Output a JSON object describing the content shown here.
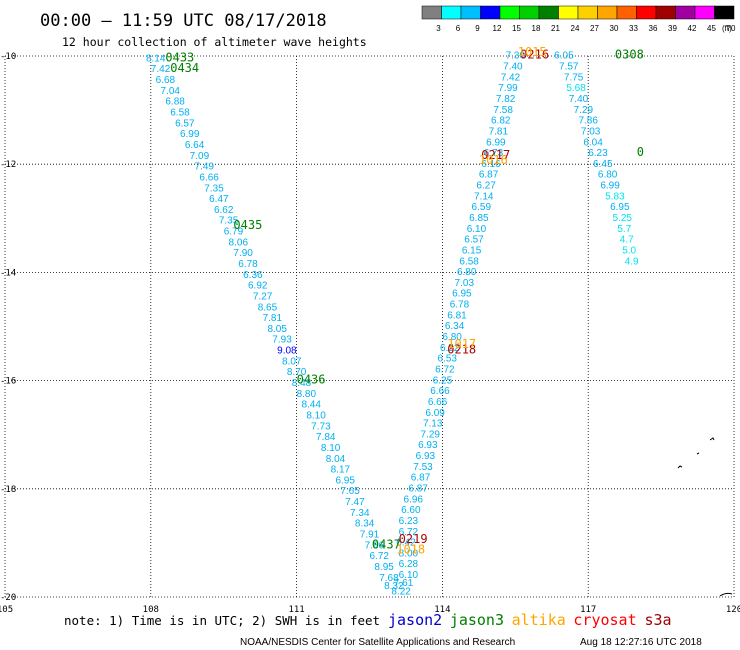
{
  "chart_data": {
    "type": "scatter",
    "title": "00:00 – 11:59 UTC 08/17/2018",
    "subtitle": "12 hour collection of altimeter wave heights",
    "xlim": [
      105,
      120
    ],
    "ylim": [
      -20,
      -10
    ],
    "x_ticks": [
      "105",
      "108",
      "111",
      "114",
      "117",
      "120"
    ],
    "y_ticks": [
      "-10",
      "-12",
      "-14",
      "-16",
      "-18",
      "-20"
    ],
    "legend": {
      "levels": [
        "3",
        "6",
        "9",
        "12",
        "15",
        "18",
        "21",
        "24",
        "27",
        "30",
        "33",
        "36",
        "39",
        "42",
        "45",
        "70"
      ],
      "unit": "(ft)",
      "colors": [
        "#808080",
        "#00ffff",
        "#00bfff",
        "#0000ff",
        "#00ff00",
        "#00d000",
        "#008000",
        "#ffff00",
        "#ffd000",
        "#ffa500",
        "#ff6000",
        "#ff0000",
        "#a00000",
        "#a000a0",
        "#ff00ff",
        "#000000"
      ]
    },
    "series": [
      {
        "name": "jason2",
        "points": [
          {
            "x": 107.9,
            "y": -10.1,
            "v": "8.14"
          },
          {
            "x": 108.0,
            "y": -10.3,
            "v": "7.42"
          },
          {
            "x": 108.1,
            "y": -10.5,
            "v": "6.68"
          },
          {
            "x": 108.2,
            "y": -10.7,
            "v": "7.04"
          },
          {
            "x": 108.3,
            "y": -10.9,
            "v": "6.88"
          },
          {
            "x": 108.4,
            "y": -11.1,
            "v": "6.58"
          },
          {
            "x": 108.5,
            "y": -11.3,
            "v": "6.57"
          },
          {
            "x": 108.6,
            "y": -11.5,
            "v": "6.99"
          },
          {
            "x": 108.7,
            "y": -11.7,
            "v": "6.64"
          },
          {
            "x": 108.8,
            "y": -11.9,
            "v": "7.09"
          },
          {
            "x": 108.9,
            "y": -12.1,
            "v": "7.49"
          },
          {
            "x": 109.0,
            "y": -12.3,
            "v": "6.66"
          },
          {
            "x": 109.1,
            "y": -12.5,
            "v": "7.35"
          },
          {
            "x": 109.2,
            "y": -12.7,
            "v": "6.47"
          },
          {
            "x": 109.3,
            "y": -12.9,
            "v": "6.62"
          },
          {
            "x": 109.4,
            "y": -13.1,
            "v": "7.35"
          },
          {
            "x": 109.5,
            "y": -13.3,
            "v": "6.79"
          },
          {
            "x": 109.6,
            "y": -13.5,
            "v": "8.06"
          },
          {
            "x": 109.7,
            "y": -13.7,
            "v": "7.90"
          },
          {
            "x": 109.8,
            "y": -13.9,
            "v": "6.78"
          },
          {
            "x": 109.9,
            "y": -14.1,
            "v": "6.36"
          },
          {
            "x": 110.0,
            "y": -14.3,
            "v": "6.92"
          },
          {
            "x": 110.1,
            "y": -14.5,
            "v": "7.27"
          },
          {
            "x": 110.2,
            "y": -14.7,
            "v": "8.65"
          },
          {
            "x": 110.3,
            "y": -14.9,
            "v": "7.81"
          },
          {
            "x": 110.4,
            "y": -15.1,
            "v": "8.05"
          },
          {
            "x": 110.5,
            "y": -15.3,
            "v": "7.93"
          },
          {
            "x": 110.6,
            "y": -15.5,
            "v": "9.08"
          },
          {
            "x": 110.7,
            "y": -15.7,
            "v": "8.07"
          },
          {
            "x": 110.8,
            "y": -15.9,
            "v": "8.70"
          },
          {
            "x": 110.9,
            "y": -16.1,
            "v": "8.48"
          },
          {
            "x": 111.0,
            "y": -16.3,
            "v": "8.80"
          },
          {
            "x": 111.1,
            "y": -16.5,
            "v": "8.44"
          },
          {
            "x": 111.2,
            "y": -16.7,
            "v": "8.10"
          },
          {
            "x": 111.3,
            "y": -16.9,
            "v": "7.73"
          },
          {
            "x": 111.4,
            "y": -17.1,
            "v": "7.84"
          },
          {
            "x": 111.5,
            "y": -17.3,
            "v": "8.10"
          },
          {
            "x": 111.6,
            "y": -17.5,
            "v": "8.04"
          },
          {
            "x": 111.7,
            "y": -17.7,
            "v": "8.17"
          },
          {
            "x": 111.8,
            "y": -17.9,
            "v": "6.95"
          },
          {
            "x": 111.9,
            "y": -18.1,
            "v": "7.65"
          },
          {
            "x": 112.0,
            "y": -18.3,
            "v": "7.47"
          },
          {
            "x": 112.1,
            "y": -18.5,
            "v": "7.34"
          },
          {
            "x": 112.2,
            "y": -18.7,
            "v": "8.34"
          },
          {
            "x": 112.3,
            "y": -18.9,
            "v": "7.91"
          },
          {
            "x": 112.4,
            "y": -19.1,
            "v": "7.86"
          },
          {
            "x": 112.5,
            "y": -19.3,
            "v": "6.72"
          },
          {
            "x": 112.6,
            "y": -19.5,
            "v": "8.95"
          },
          {
            "x": 112.7,
            "y": -19.7,
            "v": "7.68"
          },
          {
            "x": 112.8,
            "y": -19.85,
            "v": "8.32"
          },
          {
            "x": 112.95,
            "y": -19.95,
            "v": "8.22"
          },
          {
            "x": 113.0,
            "y": -19.8,
            "v": "7.61"
          },
          {
            "x": 113.1,
            "y": -19.65,
            "v": "6.10"
          },
          {
            "x": 113.1,
            "y": -19.45,
            "v": "6.28"
          },
          {
            "x": 113.1,
            "y": -19.25,
            "v": "8.00"
          },
          {
            "x": 113.05,
            "y": -19.05,
            "v": "6.42"
          },
          {
            "x": 113.1,
            "y": -18.85,
            "v": "6.72"
          },
          {
            "x": 113.1,
            "y": -18.65,
            "v": "6.23"
          },
          {
            "x": 113.15,
            "y": -18.45,
            "v": "6.60"
          },
          {
            "x": 113.2,
            "y": -18.25,
            "v": "6.96"
          },
          {
            "x": 113.3,
            "y": -18.05,
            "v": "6.87"
          },
          {
            "x": 113.35,
            "y": -17.85,
            "v": "6.87"
          },
          {
            "x": 113.4,
            "y": -17.65,
            "v": "7.53"
          },
          {
            "x": 113.45,
            "y": -17.45,
            "v": "6.93"
          },
          {
            "x": 113.5,
            "y": -17.25,
            "v": "6.93"
          },
          {
            "x": 113.55,
            "y": -17.05,
            "v": "7.29"
          },
          {
            "x": 113.6,
            "y": -16.85,
            "v": "7.13"
          },
          {
            "x": 113.65,
            "y": -16.65,
            "v": "6.09"
          },
          {
            "x": 113.7,
            "y": -16.45,
            "v": "6.66"
          },
          {
            "x": 113.75,
            "y": -16.25,
            "v": "6.66"
          },
          {
            "x": 113.8,
            "y": -16.05,
            "v": "6.25"
          },
          {
            "x": 113.85,
            "y": -15.85,
            "v": "6.72"
          },
          {
            "x": 113.9,
            "y": -15.65,
            "v": "6.53"
          },
          {
            "x": 113.95,
            "y": -15.45,
            "v": "6.52"
          },
          {
            "x": 114.0,
            "y": -15.25,
            "v": "6.80"
          },
          {
            "x": 114.05,
            "y": -15.05,
            "v": "6.34"
          },
          {
            "x": 114.1,
            "y": -14.85,
            "v": "6.81"
          },
          {
            "x": 114.15,
            "y": -14.65,
            "v": "6.78"
          },
          {
            "x": 114.2,
            "y": -14.45,
            "v": "6.95"
          },
          {
            "x": 114.25,
            "y": -14.25,
            "v": "7.03"
          },
          {
            "x": 114.3,
            "y": -14.05,
            "v": "6.80"
          },
          {
            "x": 114.35,
            "y": -13.85,
            "v": "6.58"
          },
          {
            "x": 114.4,
            "y": -13.65,
            "v": "6.15"
          },
          {
            "x": 114.45,
            "y": -13.45,
            "v": "6.57"
          },
          {
            "x": 114.5,
            "y": -13.25,
            "v": "6.10"
          },
          {
            "x": 114.55,
            "y": -13.05,
            "v": "6.85"
          },
          {
            "x": 114.6,
            "y": -12.85,
            "v": "6.59"
          },
          {
            "x": 114.65,
            "y": -12.65,
            "v": "7.14"
          },
          {
            "x": 114.7,
            "y": -12.45,
            "v": "6.27"
          },
          {
            "x": 114.75,
            "y": -12.25,
            "v": "6.87"
          },
          {
            "x": 114.8,
            "y": -12.05,
            "v": "6.16"
          },
          {
            "x": 114.85,
            "y": -11.85,
            "v": "6.73"
          },
          {
            "x": 114.9,
            "y": -11.65,
            "v": "6.99"
          },
          {
            "x": 114.95,
            "y": -11.45,
            "v": "7.81"
          },
          {
            "x": 115.0,
            "y": -11.25,
            "v": "6.82"
          },
          {
            "x": 115.05,
            "y": -11.05,
            "v": "7.58"
          },
          {
            "x": 115.1,
            "y": -10.85,
            "v": "7.82"
          },
          {
            "x": 115.15,
            "y": -10.65,
            "v": "7.99"
          },
          {
            "x": 115.2,
            "y": -10.45,
            "v": "7.42"
          },
          {
            "x": 115.25,
            "y": -10.25,
            "v": "7.40"
          },
          {
            "x": 115.3,
            "y": -10.05,
            "v": "7.30"
          },
          {
            "x": 116.3,
            "y": -10.05,
            "v": "6.05"
          },
          {
            "x": 116.4,
            "y": -10.25,
            "v": "7.57"
          },
          {
            "x": 116.5,
            "y": -10.45,
            "v": "7.75"
          },
          {
            "x": 116.55,
            "y": -10.65,
            "v": "5.68"
          },
          {
            "x": 116.6,
            "y": -10.85,
            "v": "7.40"
          },
          {
            "x": 116.7,
            "y": -11.05,
            "v": "7.29"
          },
          {
            "x": 116.8,
            "y": -11.25,
            "v": "7.86"
          },
          {
            "x": 116.85,
            "y": -11.45,
            "v": "7.03"
          },
          {
            "x": 116.9,
            "y": -11.65,
            "v": "6.04"
          },
          {
            "x": 117.0,
            "y": -11.85,
            "v": "6.23"
          },
          {
            "x": 117.1,
            "y": -12.05,
            "v": "6.45"
          },
          {
            "x": 117.2,
            "y": -12.25,
            "v": "6.80"
          },
          {
            "x": 117.25,
            "y": -12.45,
            "v": "6.99"
          },
          {
            "x": 117.35,
            "y": -12.65,
            "v": "5.83"
          },
          {
            "x": 117.45,
            "y": -12.85,
            "v": "6.95"
          },
          {
            "x": 117.5,
            "y": -13.05,
            "v": "5.25"
          },
          {
            "x": 117.6,
            "y": -13.25,
            "v": "5.7"
          },
          {
            "x": 117.65,
            "y": -13.45,
            "v": "4.7"
          },
          {
            "x": 117.7,
            "y": -13.65,
            "v": "5.0"
          },
          {
            "x": 117.75,
            "y": -13.85,
            "v": "4.9"
          }
        ]
      }
    ],
    "pass_labels": [
      {
        "text": "0433",
        "x": 108.3,
        "y": -10.1,
        "color": "#008000"
      },
      {
        "text": "0434",
        "x": 108.4,
        "y": -10.3,
        "color": "#008000"
      },
      {
        "text": "0435",
        "x": 109.7,
        "y": -13.2,
        "color": "#008000"
      },
      {
        "text": "0436",
        "x": 111.0,
        "y": -16.05,
        "color": "#008000"
      },
      {
        "text": "0437",
        "x": 112.55,
        "y": -19.1,
        "color": "#008000"
      },
      {
        "text": "0219",
        "x": 113.1,
        "y": -19.0,
        "color": "#b00000"
      },
      {
        "text": "1018",
        "x": 113.05,
        "y": -19.2,
        "color": "#ffa500"
      },
      {
        "text": "0218",
        "x": 114.1,
        "y": -15.5,
        "color": "#b00000"
      },
      {
        "text": "1017",
        "x": 114.1,
        "y": -15.4,
        "color": "#ffa500"
      },
      {
        "text": "0217",
        "x": 114.8,
        "y": -11.9,
        "color": "#b00000"
      },
      {
        "text": "1016",
        "x": 114.75,
        "y": -12.0,
        "color": "#ffa500"
      },
      {
        "text": "0216",
        "x": 115.6,
        "y": -10.05,
        "color": "#b00000"
      },
      {
        "text": "1015",
        "x": 115.55,
        "y": -10.0,
        "color": "#ffa500"
      },
      {
        "text": "0308",
        "x": 117.55,
        "y": -10.05,
        "color": "#008000"
      },
      {
        "text": "0",
        "x": 118.0,
        "y": -11.85,
        "color": "#008000"
      }
    ]
  },
  "note": {
    "text": "note: 1) Time is in UTC; 2) SWH is in feet",
    "satellites": [
      {
        "name": "jason2",
        "color": "#0000cc"
      },
      {
        "name": "jason3",
        "color": "#008000"
      },
      {
        "name": "altika",
        "color": "#ffa500"
      },
      {
        "name": "cryosat",
        "color": "#ff0000"
      },
      {
        "name": "s3a",
        "color": "#a00000"
      }
    ]
  },
  "credit": {
    "agency": "NOAA/NESDIS Center for Satellite Applications and Research",
    "timestamp": "Aug 18 12:27:16 UTC 2018"
  }
}
